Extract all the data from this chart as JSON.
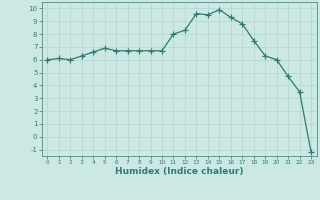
{
  "x": [
    0,
    1,
    2,
    3,
    4,
    5,
    6,
    7,
    8,
    9,
    10,
    11,
    12,
    13,
    14,
    15,
    16,
    17,
    18,
    19,
    20,
    21,
    22,
    23
  ],
  "y": [
    6.0,
    6.1,
    6.0,
    6.3,
    6.6,
    6.9,
    6.7,
    6.7,
    6.7,
    6.7,
    6.7,
    8.0,
    8.3,
    9.6,
    9.5,
    9.9,
    9.3,
    8.8,
    7.5,
    6.3,
    6.0,
    4.7,
    3.5,
    -1.2
  ],
  "xlabel": "Humidex (Indice chaleur)",
  "ylabel": "",
  "title": "",
  "xlim": [
    -0.5,
    23.5
  ],
  "ylim": [
    -1.5,
    10.5
  ],
  "line_color": "#2e7d6e",
  "marker": "+",
  "marker_size": 4,
  "bg_color": "#cce8e4",
  "grid_color": "#b8d8d2",
  "spine_color": "#2e7d6e",
  "yticks": [
    -1,
    0,
    1,
    2,
    3,
    4,
    5,
    6,
    7,
    8,
    9,
    10
  ],
  "xticks": [
    0,
    1,
    2,
    3,
    4,
    5,
    6,
    7,
    8,
    9,
    10,
    11,
    12,
    13,
    14,
    15,
    16,
    17,
    18,
    19,
    20,
    21,
    22,
    23
  ]
}
